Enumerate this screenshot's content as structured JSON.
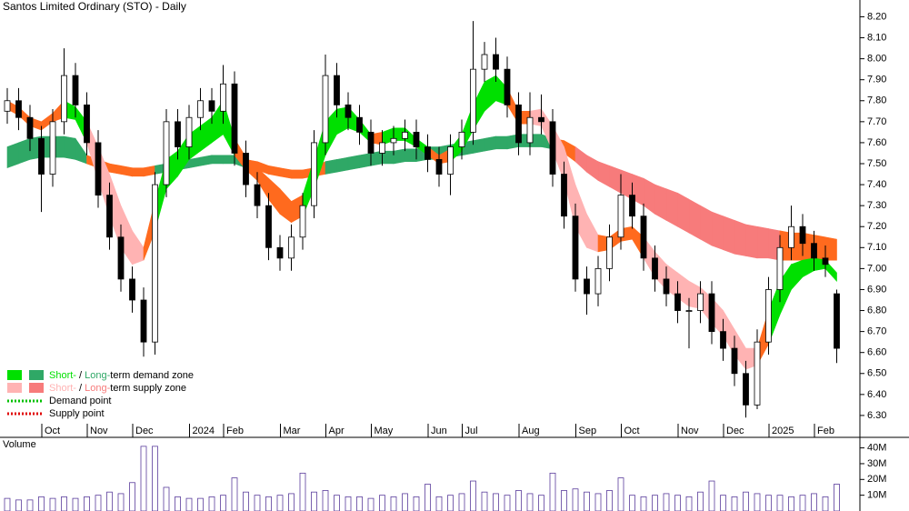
{
  "chart_data": {
    "type": "candlestick",
    "title": "Santos Limited Ordinary (STO) - Daily",
    "categories": [
      null,
      null,
      null,
      null,
      "Oct",
      null,
      null,
      null,
      "Nov",
      null,
      null,
      null,
      "Dec",
      null,
      null,
      null,
      null,
      "2024",
      null,
      null,
      "Feb",
      null,
      null,
      null,
      null,
      "Mar",
      null,
      null,
      null,
      "Apr",
      null,
      null,
      null,
      "May",
      null,
      null,
      null,
      null,
      "Jun",
      null,
      null,
      "Jul",
      null,
      null,
      null,
      null,
      "Aug",
      null,
      null,
      null,
      null,
      "Sep",
      null,
      null,
      null,
      "Oct",
      null,
      null,
      null,
      null,
      "Nov",
      null,
      null,
      null,
      "Dec",
      null,
      null,
      null,
      "2025",
      null,
      null,
      null,
      "Feb",
      null
    ],
    "open": [
      7.75,
      7.8,
      7.72,
      7.62,
      7.45,
      7.7,
      7.92,
      7.78,
      7.6,
      7.35,
      7.15,
      6.95,
      6.85,
      6.65,
      7.4,
      7.7,
      7.58,
      7.72,
      7.8,
      7.75,
      7.88,
      7.55,
      7.4,
      7.3,
      7.1,
      7.05,
      7.15,
      7.3,
      7.6,
      7.92,
      7.78,
      7.72,
      7.65,
      7.55,
      7.6,
      7.62,
      7.65,
      7.58,
      7.52,
      7.45,
      7.58,
      7.65,
      7.95,
      8.02,
      7.95,
      7.78,
      7.6,
      7.72,
      7.7,
      7.45,
      7.25,
      6.95,
      6.88,
      7.0,
      7.15,
      7.35,
      7.25,
      7.05,
      6.95,
      6.88,
      6.8,
      6.8,
      6.88,
      6.7,
      6.62,
      6.5,
      6.35,
      6.65,
      6.9,
      7.1,
      7.2,
      7.12,
      7.05,
      6.88
    ],
    "high": [
      7.86,
      7.86,
      7.78,
      7.68,
      7.76,
      8.05,
      7.98,
      7.84,
      7.66,
      7.41,
      7.21,
      7.01,
      6.91,
      7.46,
      7.76,
      7.76,
      7.78,
      7.86,
      7.86,
      7.97,
      7.94,
      7.61,
      7.46,
      7.36,
      7.16,
      7.21,
      7.36,
      7.66,
      8.02,
      7.98,
      7.84,
      7.78,
      7.71,
      7.66,
      7.68,
      7.71,
      7.71,
      7.64,
      7.58,
      7.64,
      7.71,
      8.18,
      8.08,
      8.1,
      8.01,
      7.84,
      7.84,
      7.83,
      7.76,
      7.51,
      7.31,
      7.01,
      7.06,
      7.21,
      7.45,
      7.41,
      7.31,
      7.11,
      7.01,
      6.94,
      6.86,
      6.94,
      6.94,
      6.76,
      6.68,
      6.56,
      6.71,
      6.96,
      7.16,
      7.3,
      7.26,
      7.18,
      7.11,
      6.9
    ],
    "low": [
      7.69,
      7.66,
      7.56,
      7.27,
      7.39,
      7.64,
      7.72,
      7.54,
      7.29,
      7.09,
      6.89,
      6.79,
      6.58,
      6.59,
      7.34,
      7.52,
      7.52,
      7.66,
      7.69,
      7.69,
      7.49,
      7.34,
      7.24,
      7.04,
      6.99,
      6.99,
      7.09,
      7.24,
      7.54,
      7.72,
      7.66,
      7.59,
      7.49,
      7.49,
      7.54,
      7.56,
      7.52,
      7.46,
      7.39,
      7.35,
      7.52,
      7.59,
      7.89,
      7.89,
      7.72,
      7.54,
      7.54,
      7.64,
      7.39,
      7.19,
      6.89,
      6.78,
      6.82,
      6.94,
      7.09,
      7.19,
      6.99,
      6.89,
      6.82,
      6.74,
      6.62,
      6.74,
      6.64,
      6.56,
      6.44,
      6.29,
      6.33,
      6.59,
      6.84,
      7.04,
      7.06,
      6.99,
      6.96,
      6.55
    ],
    "close": [
      7.8,
      7.72,
      7.62,
      7.45,
      7.7,
      7.92,
      7.78,
      7.6,
      7.35,
      7.15,
      6.95,
      6.85,
      6.65,
      7.4,
      7.7,
      7.58,
      7.72,
      7.8,
      7.75,
      7.88,
      7.55,
      7.4,
      7.3,
      7.1,
      7.05,
      7.15,
      7.3,
      7.6,
      7.92,
      7.78,
      7.72,
      7.65,
      7.55,
      7.6,
      7.62,
      7.65,
      7.58,
      7.52,
      7.45,
      7.58,
      7.65,
      7.95,
      8.02,
      7.95,
      7.78,
      7.6,
      7.72,
      7.7,
      7.45,
      7.25,
      6.95,
      6.88,
      7.0,
      7.15,
      7.35,
      7.25,
      7.05,
      6.95,
      6.88,
      6.8,
      6.8,
      6.88,
      6.7,
      6.62,
      6.5,
      6.35,
      6.65,
      6.9,
      7.1,
      7.2,
      7.12,
      7.05,
      7.02,
      6.62
    ],
    "up_color": "#ffffff",
    "down_color": "#000000",
    "ylim": [
      6.2,
      8.28
    ],
    "yticks": [
      {
        "value": 6.3,
        "label": "6.30"
      },
      {
        "value": 6.4,
        "label": "6.40"
      },
      {
        "value": 6.5,
        "label": "6.50"
      },
      {
        "value": 6.6,
        "label": "6.60"
      },
      {
        "value": 6.7,
        "label": "6.70"
      },
      {
        "value": 6.8,
        "label": "6.80"
      },
      {
        "value": 6.9,
        "label": "6.90"
      },
      {
        "value": 7.0,
        "label": "7.00"
      },
      {
        "value": 7.1,
        "label": "7.10"
      },
      {
        "value": 7.2,
        "label": "7.20"
      },
      {
        "value": 7.3,
        "label": "7.30"
      },
      {
        "value": 7.4,
        "label": "7.40"
      },
      {
        "value": 7.5,
        "label": "7.50"
      },
      {
        "value": 7.6,
        "label": "7.60"
      },
      {
        "value": 7.7,
        "label": "7.70"
      },
      {
        "value": 7.8,
        "label": "7.80"
      },
      {
        "value": 7.9,
        "label": "7.90"
      },
      {
        "value": 8.0,
        "label": "8.00"
      },
      {
        "value": 8.1,
        "label": "8.10"
      },
      {
        "value": 8.2,
        "label": "8.20"
      }
    ],
    "long_band": {
      "lower": [
        7.48,
        7.5,
        7.52,
        7.53,
        7.53,
        7.53,
        7.52,
        7.5,
        7.48,
        7.46,
        7.45,
        7.44,
        7.44,
        7.45,
        7.46,
        7.47,
        7.48,
        7.49,
        7.5,
        7.5,
        7.5,
        7.48,
        7.47,
        7.45,
        7.44,
        7.43,
        7.43,
        7.44,
        7.45,
        7.46,
        7.47,
        7.48,
        7.49,
        7.5,
        7.5,
        7.51,
        7.51,
        7.52,
        7.52,
        7.53,
        7.54,
        7.55,
        7.56,
        7.57,
        7.57,
        7.58,
        7.58,
        7.58,
        7.57,
        7.55,
        7.51,
        7.46,
        7.42,
        7.39,
        7.36,
        7.33,
        7.3,
        7.26,
        7.23,
        7.2,
        7.17,
        7.14,
        7.11,
        7.09,
        7.07,
        7.06,
        7.05,
        7.05,
        7.04,
        7.04,
        7.04,
        7.04,
        7.04,
        7.04
      ],
      "upper": [
        7.58,
        7.6,
        7.62,
        7.63,
        7.63,
        7.63,
        7.62,
        7.54,
        7.52,
        7.5,
        7.49,
        7.48,
        7.48,
        7.49,
        7.5,
        7.51,
        7.52,
        7.53,
        7.54,
        7.54,
        7.54,
        7.52,
        7.51,
        7.49,
        7.48,
        7.47,
        7.47,
        7.48,
        7.51,
        7.52,
        7.53,
        7.54,
        7.55,
        7.56,
        7.56,
        7.57,
        7.57,
        7.58,
        7.58,
        7.59,
        7.6,
        7.61,
        7.62,
        7.63,
        7.63,
        7.64,
        7.64,
        7.64,
        7.62,
        7.61,
        7.58,
        7.54,
        7.51,
        7.49,
        7.47,
        7.45,
        7.43,
        7.4,
        7.38,
        7.36,
        7.33,
        7.3,
        7.27,
        7.25,
        7.23,
        7.21,
        7.2,
        7.19,
        7.18,
        7.17,
        7.17,
        7.16,
        7.15,
        7.14
      ],
      "colors": [
        "#2fa866",
        "#2fa866",
        "#2fa866",
        "#2fa866",
        "#2fa866",
        "#2fa866",
        "#2fa866",
        "#ff6a1e",
        "#ff6a1e",
        "#ff6a1e",
        "#ff6a1e",
        "#ff6a1e",
        "#ff6a1e",
        "#2fa866",
        "#2fa866",
        "#2fa866",
        "#2fa866",
        "#2fa866",
        "#2fa866",
        "#2fa866",
        "#2fa866",
        "#ff6a1e",
        "#ff6a1e",
        "#ff6a1e",
        "#ff6a1e",
        "#ff6a1e",
        "#ff6a1e",
        "#ff6a1e",
        "#2fa866",
        "#2fa866",
        "#2fa866",
        "#2fa866",
        "#2fa866",
        "#2fa866",
        "#2fa866",
        "#2fa866",
        "#2fa866",
        "#2fa866",
        "#2fa866",
        "#2fa866",
        "#2fa866",
        "#2fa866",
        "#2fa866",
        "#2fa866",
        "#2fa866",
        "#2fa866",
        "#2fa866",
        "#2fa866",
        "#ff6a1e",
        "#ff6a1e",
        "#f77b7b",
        "#f77b7b",
        "#f77b7b",
        "#f77b7b",
        "#f77b7b",
        "#f77b7b",
        "#f77b7b",
        "#f77b7b",
        "#f77b7b",
        "#f77b7b",
        "#f77b7b",
        "#f77b7b",
        "#f77b7b",
        "#f77b7b",
        "#f77b7b",
        "#f77b7b",
        "#f77b7b",
        "#f77b7b",
        "#ff6a1e",
        "#ff6a1e",
        "#ff6a1e",
        "#ff6a1e",
        "#ff6a1e",
        "#ff6a1e"
      ]
    },
    "short_band": {
      "lower": [
        7.76,
        7.73,
        7.68,
        7.66,
        7.7,
        7.72,
        7.71,
        7.6,
        7.42,
        7.25,
        7.1,
        7.02,
        7.04,
        7.18,
        7.38,
        7.44,
        7.52,
        7.56,
        7.6,
        7.64,
        7.54,
        7.47,
        7.42,
        7.33,
        7.26,
        7.22,
        7.25,
        7.38,
        7.54,
        7.64,
        7.67,
        7.65,
        7.6,
        7.59,
        7.61,
        7.61,
        7.58,
        7.54,
        7.5,
        7.51,
        7.56,
        7.66,
        7.75,
        7.8,
        7.78,
        7.69,
        7.69,
        7.68,
        7.56,
        7.42,
        7.2,
        7.1,
        7.08,
        7.09,
        7.13,
        7.14,
        7.05,
        6.96,
        6.9,
        6.86,
        6.82,
        6.81,
        6.74,
        6.68,
        6.59,
        6.52,
        6.54,
        6.64,
        6.78,
        6.9,
        6.96,
        6.99,
        7.0,
        6.94
      ],
      "upper": [
        7.8,
        7.77,
        7.72,
        7.7,
        7.74,
        7.8,
        7.77,
        7.7,
        7.58,
        7.45,
        7.3,
        7.18,
        7.1,
        7.32,
        7.52,
        7.56,
        7.64,
        7.68,
        7.72,
        7.8,
        7.62,
        7.53,
        7.48,
        7.43,
        7.38,
        7.32,
        7.35,
        7.52,
        7.7,
        7.76,
        7.77,
        7.71,
        7.64,
        7.65,
        7.67,
        7.67,
        7.62,
        7.58,
        7.54,
        7.57,
        7.64,
        7.78,
        7.89,
        7.92,
        7.86,
        7.75,
        7.75,
        7.76,
        7.68,
        7.58,
        7.4,
        7.26,
        7.16,
        7.15,
        7.19,
        7.2,
        7.15,
        7.08,
        7.02,
        6.98,
        6.94,
        6.91,
        6.86,
        6.8,
        6.71,
        6.62,
        6.62,
        6.8,
        6.94,
        7.02,
        7.04,
        7.05,
        7.04,
        6.98
      ],
      "colors": [
        "#ff6a1e",
        "#ff6a1e",
        "#ff6a1e",
        "#ff6a1e",
        "#ff6a1e",
        "#00e000",
        "#00e000",
        "#ffb3b3",
        "#ffb3b3",
        "#ffb3b3",
        "#ffb3b3",
        "#ffb3b3",
        "#ff6a1e",
        "#00e000",
        "#00e000",
        "#00e000",
        "#00e000",
        "#00e000",
        "#00e000",
        "#00e000",
        "#ff6a1e",
        "#ff6a1e",
        "#ff6a1e",
        "#ff6a1e",
        "#ff6a1e",
        "#ff6a1e",
        "#00e000",
        "#00e000",
        "#00e000",
        "#00e000",
        "#00e000",
        "#00e000",
        "#ff6a1e",
        "#00e000",
        "#00e000",
        "#00e000",
        "#00e000",
        "#ff6a1e",
        "#ff6a1e",
        "#00e000",
        "#00e000",
        "#00e000",
        "#00e000",
        "#00e000",
        "#ff6a1e",
        "#ff6a1e",
        "#ffb3b3",
        "#ffb3b3",
        "#ffb3b3",
        "#ffb3b3",
        "#ffb3b3",
        "#ffb3b3",
        "#ff6a1e",
        "#ff6a1e",
        "#ff6a1e",
        "#ff6a1e",
        "#ffb3b3",
        "#ffb3b3",
        "#ffb3b3",
        "#ffb3b3",
        "#ffb3b3",
        "#ffb3b3",
        "#ffb3b3",
        "#ffb3b3",
        "#ffb3b3",
        "#ffb3b3",
        "#ff6a1e",
        "#00e000",
        "#00e000",
        "#00e000",
        "#00e000",
        "#00e000",
        "#00e000",
        "#ff6a1e"
      ]
    },
    "volume": {
      "label": "Volume",
      "color": "#5a3c9c",
      "values": [
        8,
        7,
        7,
        9,
        8,
        9,
        8,
        9,
        10,
        12,
        11,
        18,
        41,
        41,
        15,
        9,
        8,
        8,
        9,
        10,
        21,
        12,
        10,
        9,
        10,
        11,
        24,
        12,
        13,
        10,
        9,
        9,
        8,
        10,
        9,
        11,
        9,
        17,
        9,
        10,
        11,
        19,
        12,
        11,
        10,
        13,
        11,
        10,
        24,
        13,
        14,
        12,
        11,
        13,
        21,
        10,
        9,
        10,
        11,
        10,
        9,
        12,
        19,
        10,
        9,
        12,
        11,
        10,
        10,
        9,
        10,
        11,
        9,
        17
      ],
      "ylim": [
        0,
        41.5
      ],
      "yticks": [
        {
          "value": 10,
          "label": "10M"
        },
        {
          "value": 20,
          "label": "20M"
        },
        {
          "value": 30,
          "label": "30M"
        },
        {
          "value": 40,
          "label": "40M"
        }
      ]
    },
    "legend": [
      {
        "short": "Short-",
        "mid": " / ",
        "long": "Long-",
        "text": "term demand zone",
        "colors": [
          "#00e000",
          "#2fa866"
        ]
      },
      {
        "short": "Short-",
        "mid": " / ",
        "long": "Long-",
        "text": "term supply zone",
        "colors": [
          "#ffb3b3",
          "#f77b7b"
        ]
      },
      {
        "text": "Demand point",
        "color": "#00c000"
      },
      {
        "text": "Supply point",
        "color": "#e00000"
      }
    ]
  }
}
